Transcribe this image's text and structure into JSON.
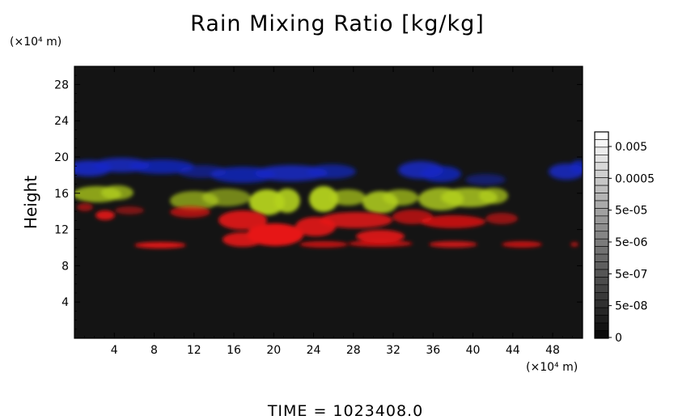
{
  "chart_data": {
    "type": "heatmap",
    "title": "Rain Mixing Ratio [kg/kg]",
    "ylabel": "Height",
    "x_unit_label": "(×10⁴ m)",
    "y_unit_label": "(×10⁴ m)",
    "xlim": [
      0,
      51
    ],
    "ylim": [
      0,
      30
    ],
    "x_ticks": [
      4,
      8,
      12,
      16,
      20,
      24,
      28,
      32,
      36,
      40,
      44,
      48
    ],
    "y_ticks": [
      4,
      8,
      12,
      16,
      20,
      24,
      28
    ],
    "colorbar": {
      "labels": [
        "0.005",
        "0.0005",
        "5e-05",
        "5e-06",
        "5e-07",
        "5e-08",
        "0"
      ]
    },
    "features": [
      {
        "color": "#1428c8",
        "x": [
          0,
          51
        ],
        "y": [
          17,
          20
        ]
      },
      {
        "color": "#b4d21e",
        "x": [
          2,
          43
        ],
        "y": [
          13.5,
          17
        ]
      },
      {
        "color": "#e61414",
        "x": [
          3,
          51
        ],
        "y": [
          9.5,
          15
        ]
      }
    ],
    "footer": "TIME = 1023408.0"
  }
}
